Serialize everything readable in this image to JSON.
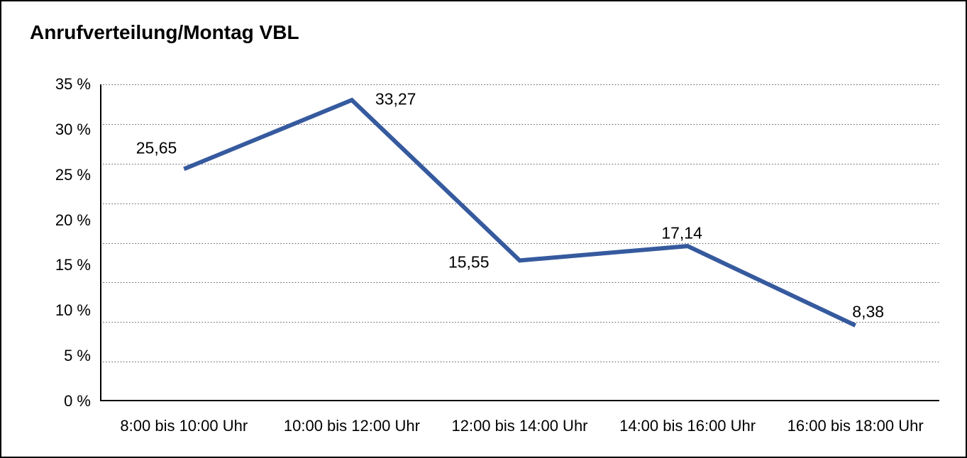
{
  "window": {
    "background": "#ffffff",
    "border_color": "#000000"
  },
  "chart_data": {
    "type": "line",
    "title": "Anrufverteilung/Montag VBL",
    "categories": [
      "8:00 bis 10:00 Uhr",
      "10:00 bis 12:00 Uhr",
      "12:00 bis 14:00 Uhr",
      "14:00 bis 16:00 Uhr",
      "16:00 bis 18:00 Uhr"
    ],
    "series": [
      {
        "values": [
          25.65,
          33.27,
          15.55,
          17.14,
          8.38
        ],
        "point_labels": [
          "25,65",
          "33,27",
          "15,55",
          "17,14",
          "8,38"
        ],
        "color": "#365A9E"
      }
    ],
    "xlabel": "",
    "ylabel": "",
    "ylim": [
      0,
      35
    ],
    "ytick_step": 5,
    "yticks": [
      {
        "value": 35,
        "label": "35 %"
      },
      {
        "value": 30,
        "label": "30 %"
      },
      {
        "value": 25,
        "label": "25 %"
      },
      {
        "value": 20,
        "label": "20 %"
      },
      {
        "value": 15,
        "label": "15 %"
      },
      {
        "value": 10,
        "label": "10 %"
      },
      {
        "value": 5,
        "label": "5 %"
      },
      {
        "value": 0,
        "label": "0 %"
      }
    ],
    "grid": {
      "horizontal": true,
      "style": "dotted",
      "divisions": 8,
      "color": "#555555"
    },
    "axis_color": "#000000",
    "text_color": "#000000",
    "legend": "none"
  }
}
